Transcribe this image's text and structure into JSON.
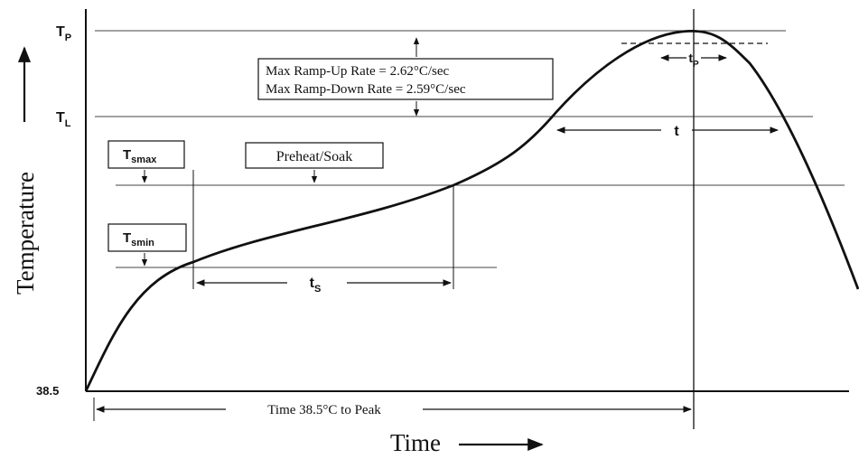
{
  "axes": {
    "y_label": "Temperature",
    "x_label": "Time",
    "origin_value": "38.5"
  },
  "levels": {
    "tp": {
      "main": "T",
      "sub": "P"
    },
    "tl": {
      "main": "T",
      "sub": "L"
    },
    "tsmax": {
      "main": "T",
      "sub": "smax"
    },
    "tsmin": {
      "main": "T",
      "sub": "smin"
    }
  },
  "labels": {
    "ramp_up": "Max Ramp-Up Rate = 2.62°C/sec",
    "ramp_down": "Max Ramp-Down Rate = 2.59°C/sec",
    "preheat": "Preheat/Soak",
    "t_s": {
      "main": "t",
      "sub": "S"
    },
    "t_p": {
      "main": "t",
      "sub": "P"
    },
    "t_l": "t",
    "time_to_peak": "Time 38.5°C to Peak"
  },
  "colors": {
    "ink": "#111111",
    "guide": "#444444"
  }
}
